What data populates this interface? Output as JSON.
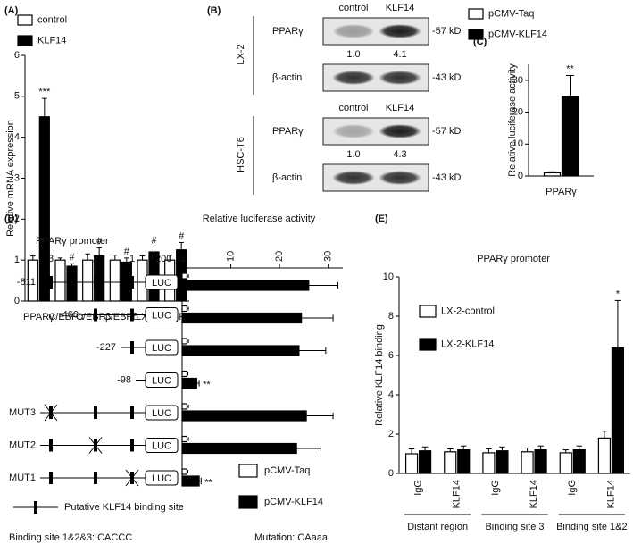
{
  "chart_data": [
    {
      "type": "bar",
      "label": "(A)",
      "ylabel": "Relative mRNA expression",
      "categories": [
        "PPARγ",
        "C/EBPα",
        "C/EBPβ",
        "C/EBPδ",
        "LXRα",
        "SREBP-1c"
      ],
      "series": [
        {
          "name": "control",
          "color": "#ffffff",
          "values": [
            1.0,
            1.0,
            1.0,
            1.0,
            1.0,
            1.0
          ],
          "errors": [
            0.1,
            0.05,
            0.15,
            0.12,
            0.1,
            0.12
          ]
        },
        {
          "name": "KLF14",
          "color": "#000000",
          "values": [
            4.5,
            0.85,
            1.1,
            0.95,
            1.2,
            1.25
          ],
          "errors": [
            0.45,
            0.06,
            0.2,
            0.1,
            0.12,
            0.18
          ],
          "significance": [
            "***",
            "#",
            "#",
            "#",
            "#",
            "#"
          ]
        }
      ],
      "ylim": [
        0,
        6
      ],
      "yticks": [
        0,
        1,
        2,
        3,
        4,
        5,
        6
      ]
    },
    {
      "type": "bar",
      "label": "(C)",
      "ylabel": "Relative luciferase activity",
      "categories": [
        "PPARγ"
      ],
      "series": [
        {
          "name": "pCMV-Taq",
          "color": "#ffffff",
          "values": [
            1.0
          ],
          "errors": [
            0.3
          ]
        },
        {
          "name": "pCMV-KLF14",
          "color": "#000000",
          "values": [
            25
          ],
          "errors": [
            6.5
          ],
          "significance": [
            "**"
          ]
        }
      ],
      "ylim": [
        0,
        35
      ],
      "yticks": [
        0,
        10,
        20,
        30
      ]
    },
    {
      "type": "hbar",
      "label": "(D)",
      "xlabel": "Relative luciferase activity",
      "categories": [
        "-811",
        "-460",
        "-227",
        "-98",
        "MUT3",
        "MUT2",
        "MUT1"
      ],
      "series": [
        {
          "name": "pCMV-Taq",
          "color": "#ffffff",
          "values": [
            1.0,
            1.0,
            1.0,
            1.0,
            1.0,
            1.0,
            1.0
          ],
          "errors": [
            0.3,
            0.3,
            0.3,
            0.2,
            0.3,
            0.3,
            0.2
          ]
        },
        {
          "name": "pCMV-KLF14",
          "color": "#000000",
          "values": [
            26,
            24.5,
            24,
            3,
            25.5,
            23.5,
            3.5
          ],
          "errors": [
            6,
            6.5,
            5.5,
            0.5,
            5.5,
            5,
            0.4
          ],
          "significance": [
            null,
            null,
            null,
            "**",
            null,
            null,
            "**"
          ]
        }
      ],
      "xlim": [
        0,
        33
      ],
      "xticks": [
        0,
        10,
        20,
        30
      ],
      "diagram": {
        "title": "PPARγ promoter",
        "sites": [
          "3",
          "2",
          "1"
        ],
        "end": "+200",
        "box": "LUC",
        "key": "Putative  KLF14 binding site",
        "notes": [
          "Binding site 1&2&3: CACCC",
          "Mutation: CAaaa"
        ]
      }
    },
    {
      "type": "bar",
      "label": "(E)",
      "title": "PPARγ promoter",
      "ylabel": "Relative KLF14 binding",
      "categories": [
        "IgG",
        "KLF14",
        "IgG",
        "KLF14",
        "IgG",
        "KLF14"
      ],
      "groups": [
        "Distant region",
        "Binding site 3",
        "Binding site 1&2"
      ],
      "series": [
        {
          "name": "LX-2-control",
          "color": "#ffffff",
          "values": [
            1.0,
            1.1,
            1.05,
            1.1,
            1.05,
            1.8
          ],
          "errors": [
            0.25,
            0.15,
            0.2,
            0.2,
            0.15,
            0.35
          ]
        },
        {
          "name": "LX-2-KLF14",
          "color": "#000000",
          "values": [
            1.15,
            1.2,
            1.15,
            1.2,
            1.2,
            6.4
          ],
          "errors": [
            0.2,
            0.2,
            0.2,
            0.2,
            0.2,
            2.4
          ],
          "significance": [
            null,
            null,
            null,
            null,
            null,
            "*"
          ]
        }
      ],
      "ylim": [
        0,
        10
      ],
      "yticks": [
        0,
        2,
        4,
        6,
        8,
        10
      ]
    }
  ],
  "blots": {
    "label": "(B)",
    "lanes": [
      "control",
      "KLF14"
    ],
    "panels": [
      {
        "cell": "LX-2",
        "rows": [
          "PPARγ",
          "β-actin"
        ],
        "sizes": [
          "-57 kD",
          "-43 kD"
        ],
        "quant": [
          "1.0",
          "4.1"
        ]
      },
      {
        "cell": "HSC-T6",
        "rows": [
          "PPARγ",
          "β-actin"
        ],
        "sizes": [
          "-57 kD",
          "-43 kD"
        ],
        "quant": [
          "1.0",
          "4.3"
        ]
      }
    ]
  }
}
